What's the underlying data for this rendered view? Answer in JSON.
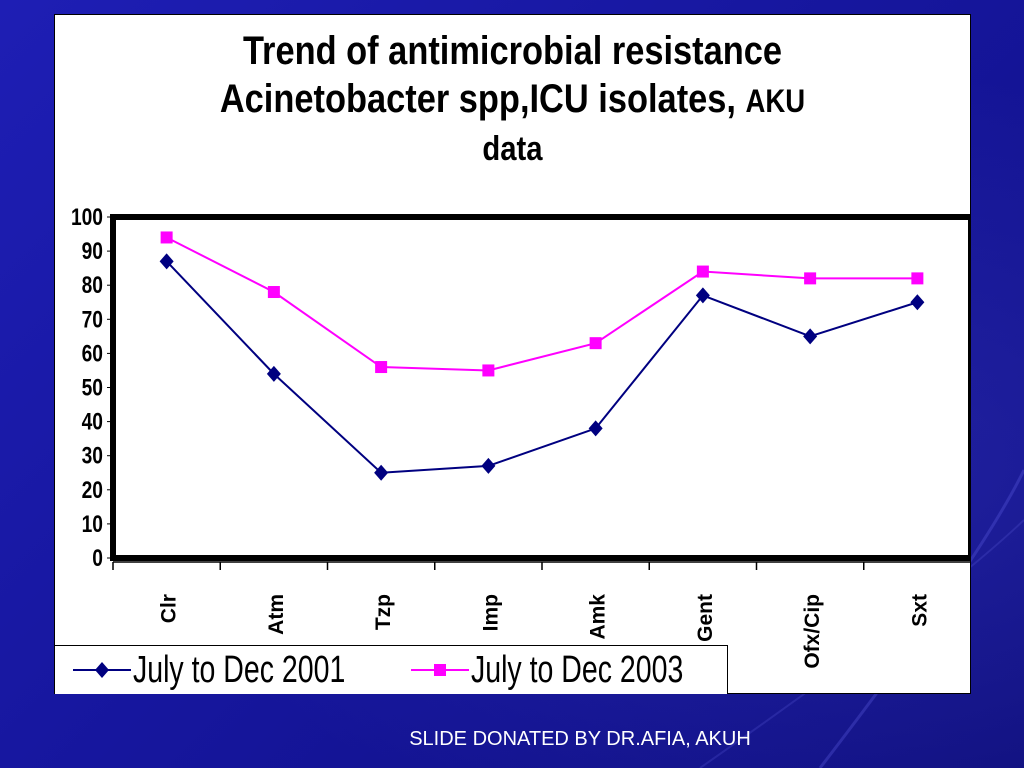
{
  "slide": {
    "footer": "SLIDE DONATED BY DR.AFIA, AKUH"
  },
  "chart_data": {
    "type": "line",
    "title_line1": "Trend of antimicrobial  resistance",
    "title_line2": "Acinetobacter spp,ICU isolates,",
    "title_suffix": "AKU",
    "title_line3": "data",
    "categories": [
      "Clr",
      "Atm",
      "Tzp",
      "Imp",
      "Amk",
      "Gent",
      "Ofx/Cip",
      "Sxt"
    ],
    "ylim": [
      0,
      100
    ],
    "yticks": [
      0,
      10,
      20,
      30,
      40,
      50,
      60,
      70,
      80,
      90,
      100
    ],
    "grid": false,
    "legend_position": "bottom-left",
    "series": [
      {
        "name": "July to Dec 2001",
        "color": "#000080",
        "marker": "diamond",
        "values": [
          87,
          54,
          25,
          27,
          38,
          77,
          65,
          75
        ]
      },
      {
        "name": "July to Dec 2003",
        "color": "#ff00ff",
        "marker": "square",
        "values": [
          94,
          78,
          56,
          55,
          63,
          84,
          82,
          82
        ]
      }
    ]
  }
}
